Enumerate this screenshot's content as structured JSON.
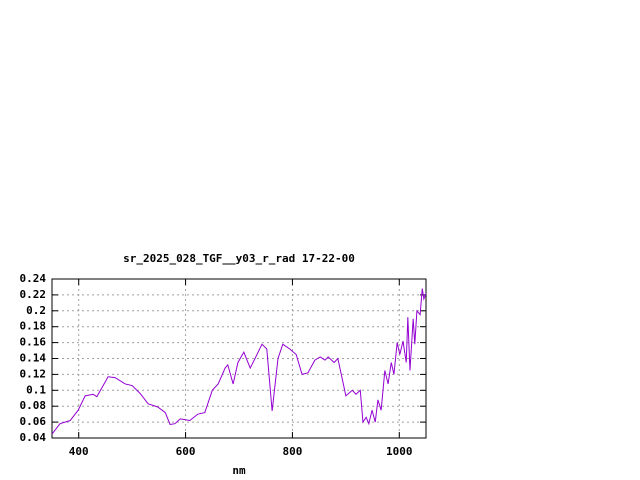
{
  "chart_data": {
    "type": "line",
    "title": "sr_2025_028_TGF__y03_r_rad 17-22-00",
    "x_label": "nm",
    "x": [
      350,
      365,
      384,
      399,
      412,
      427,
      434,
      455,
      468,
      487,
      500,
      515,
      530,
      548,
      562,
      571,
      580,
      590,
      608,
      623,
      636,
      650,
      661,
      674,
      679,
      689,
      698,
      709,
      721,
      730,
      743,
      752,
      762,
      773,
      782,
      795,
      807,
      818,
      829,
      842,
      852,
      861,
      867,
      878,
      885,
      893,
      900,
      912,
      919,
      927,
      932,
      938,
      943,
      949,
      955,
      960,
      966,
      973,
      979,
      985,
      990,
      996,
      1001,
      1007,
      1013,
      1016,
      1020,
      1026,
      1029,
      1033,
      1039,
      1043,
      1046,
      1050
    ],
    "series": [
      {
        "color": "#9400d3",
        "values": [
          0.045,
          0.058,
          0.062,
          0.075,
          0.093,
          0.095,
          0.092,
          0.117,
          0.116,
          0.108,
          0.106,
          0.096,
          0.083,
          0.079,
          0.072,
          0.057,
          0.058,
          0.064,
          0.062,
          0.07,
          0.072,
          0.1,
          0.108,
          0.128,
          0.132,
          0.108,
          0.135,
          0.148,
          0.128,
          0.14,
          0.158,
          0.152,
          0.074,
          0.14,
          0.158,
          0.152,
          0.145,
          0.12,
          0.122,
          0.138,
          0.142,
          0.138,
          0.142,
          0.135,
          0.14,
          0.115,
          0.093,
          0.1,
          0.095,
          0.1,
          0.06,
          0.066,
          0.058,
          0.075,
          0.06,
          0.088,
          0.075,
          0.125,
          0.108,
          0.135,
          0.12,
          0.16,
          0.145,
          0.162,
          0.135,
          0.192,
          0.125,
          0.19,
          0.158,
          0.2,
          0.195,
          0.228,
          0.215,
          0.222
        ]
      }
    ],
    "xlim": [
      350,
      1050
    ],
    "xticks": [
      400,
      600,
      800,
      1000
    ],
    "ylim": [
      0.04,
      0.24
    ],
    "yticks": [
      0.04,
      0.06,
      0.08,
      0.1,
      0.12,
      0.14,
      0.16,
      0.18,
      0.2,
      0.22,
      0.24
    ],
    "grid": true
  }
}
